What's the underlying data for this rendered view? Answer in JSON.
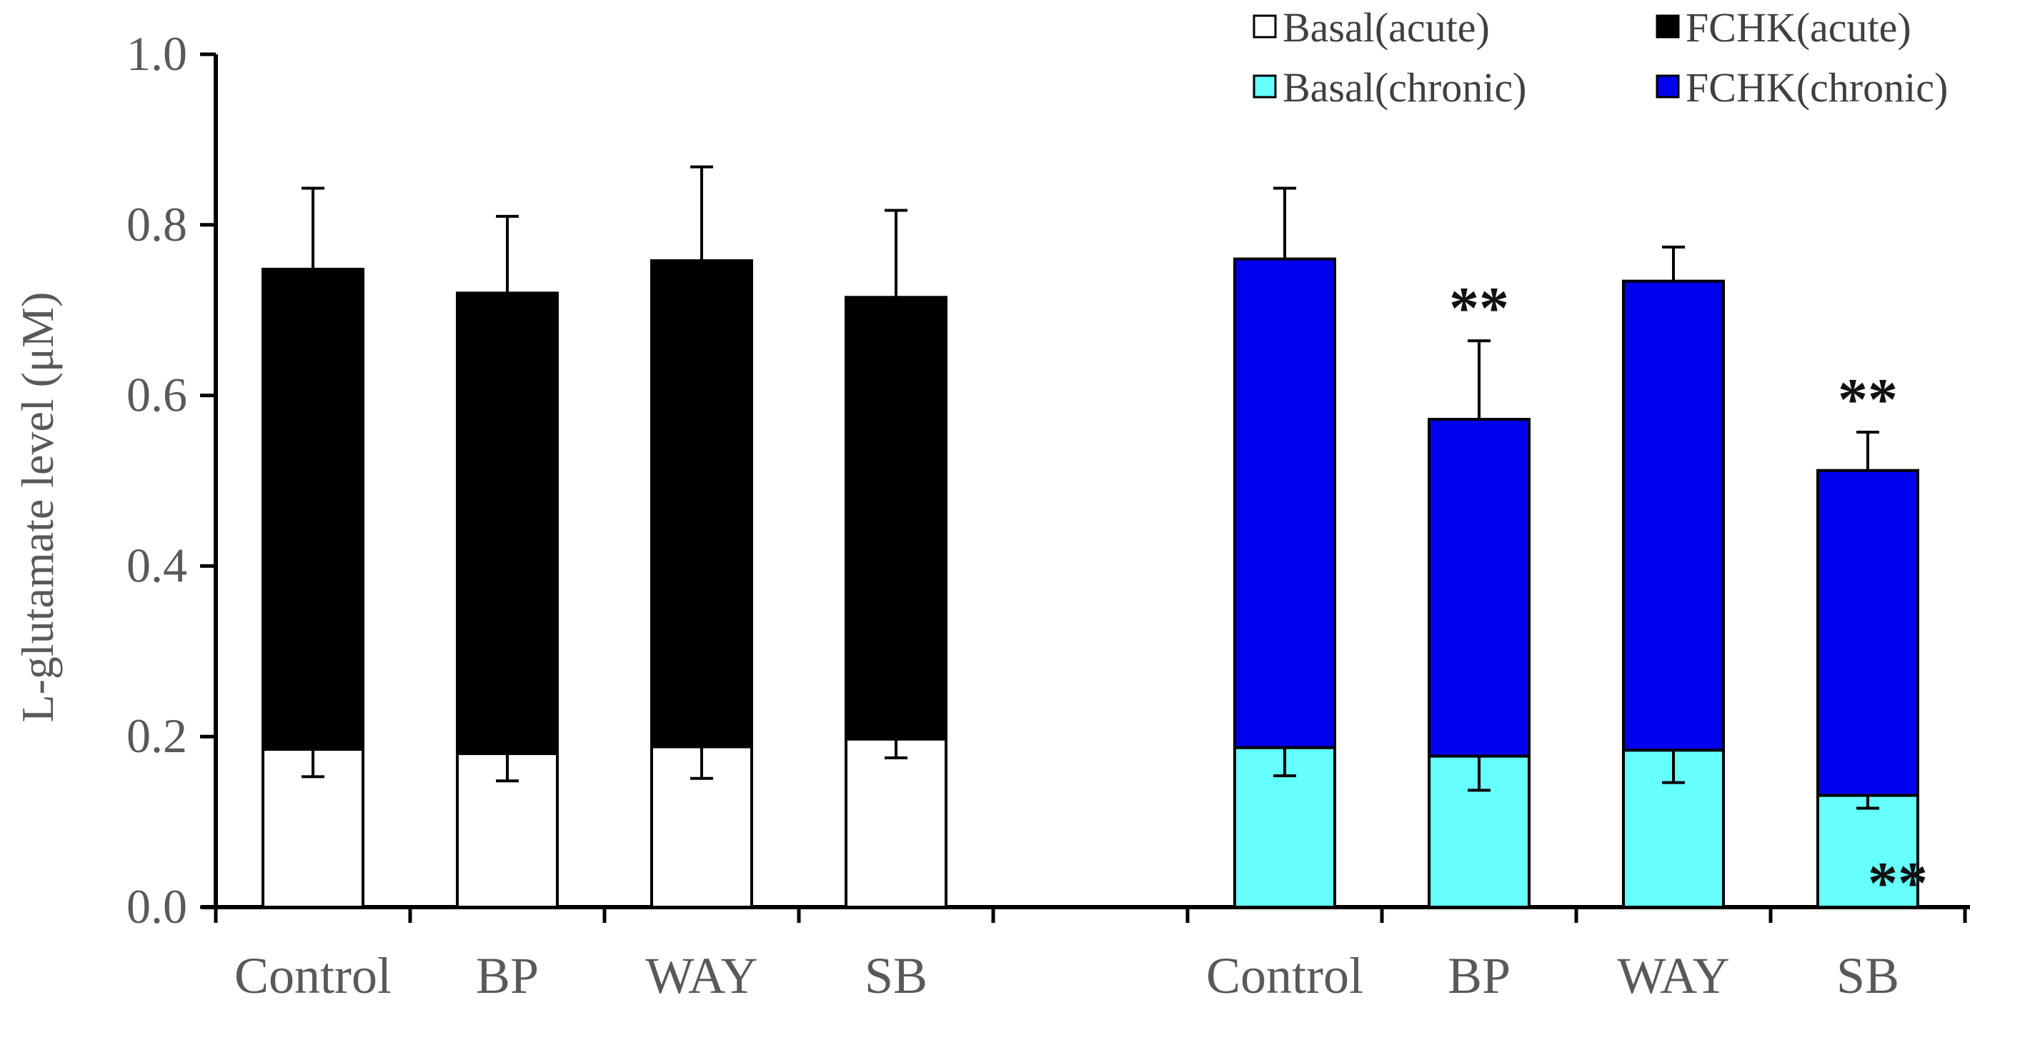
{
  "chart_data": {
    "type": "bar",
    "stacked": true,
    "title": "",
    "xlabel": "",
    "ylabel": "L-glutamate level (μM)",
    "ylim": [
      0,
      1.0
    ],
    "yticks": [
      "0.0",
      "0.2",
      "0.4",
      "0.6",
      "0.8",
      "1.0"
    ],
    "ytick_values": [
      0,
      0.2,
      0.4,
      0.6,
      0.8,
      1.0
    ],
    "legend_position": "top-right",
    "groups": [
      {
        "name": "acute",
        "categories": [
          "Control",
          "BP",
          "WAY",
          "SB"
        ],
        "basal": {
          "name": "Basal(acute)",
          "color": "#ffffff",
          "values": [
            0.185,
            0.18,
            0.188,
            0.197
          ],
          "errors": [
            0.032,
            0.032,
            0.037,
            0.022
          ]
        },
        "fchk": {
          "name": "FCHK(acute)",
          "color": "#000000",
          "totals": [
            0.748,
            0.72,
            0.758,
            0.715
          ],
          "errors": [
            0.095,
            0.09,
            0.11,
            0.102
          ]
        },
        "sig_fchk": [
          "",
          "",
          "",
          ""
        ],
        "sig_basal": [
          "",
          "",
          "",
          ""
        ]
      },
      {
        "name": "chronic",
        "categories": [
          "Control",
          "BP",
          "WAY",
          "SB"
        ],
        "basal": {
          "name": "Basal(chronic)",
          "color": "#66ffff",
          "values": [
            0.187,
            0.177,
            0.184,
            0.131
          ],
          "errors": [
            0.033,
            0.04,
            0.038,
            0.015
          ]
        },
        "fchk": {
          "name": "FCHK(chronic)",
          "color": "#0000ee",
          "totals": [
            0.76,
            0.572,
            0.734,
            0.512
          ],
          "errors": [
            0.083,
            0.092,
            0.04,
            0.045
          ]
        },
        "sig_fchk": [
          "",
          "**",
          "",
          "**"
        ],
        "sig_basal": [
          "",
          "",
          "",
          "**"
        ]
      }
    ],
    "legend": [
      {
        "label": "Basal(acute)",
        "color": "#ffffff"
      },
      {
        "label": "FCHK(acute)",
        "color": "#000000"
      },
      {
        "label": "Basal(chronic)",
        "color": "#66ffff"
      },
      {
        "label": "FCHK(chronic)",
        "color": "#0000ee"
      }
    ]
  }
}
